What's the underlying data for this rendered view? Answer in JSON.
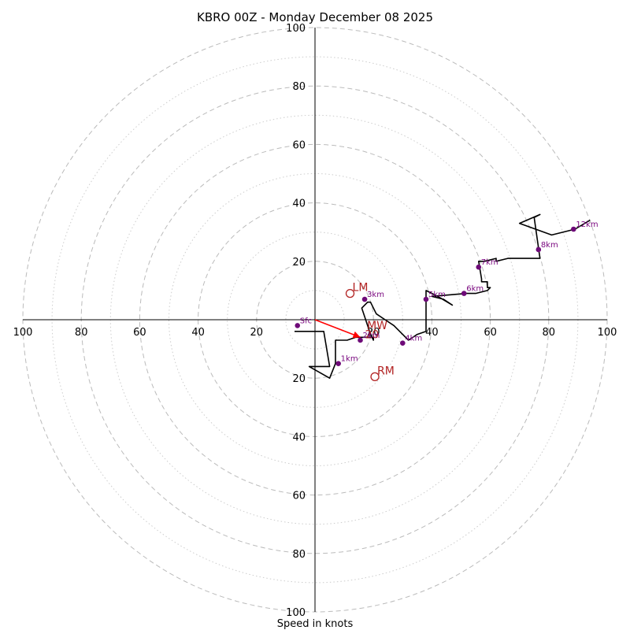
{
  "chart_data": {
    "type": "hodograph",
    "title": "KBRO 00Z - Monday December 08 2025",
    "xlabel": "Speed in knots",
    "range": [
      -100,
      100
    ],
    "ring_major_step": 20,
    "ring_minor_step": 10,
    "tick_labels": {
      "x_left": [
        "100",
        "80",
        "60",
        "40",
        "20"
      ],
      "x_right": [
        "20",
        "40",
        "60",
        "80",
        "100"
      ],
      "y_up": [
        "20",
        "40",
        "60",
        "80",
        "100"
      ],
      "y_down": [
        "20",
        "40",
        "60",
        "80",
        "100"
      ]
    },
    "hodograph_trace": [
      [
        -7,
        -4
      ],
      [
        3,
        -4
      ],
      [
        5,
        -16
      ],
      [
        -2,
        -16
      ],
      [
        5,
        -20
      ],
      [
        7,
        -15
      ],
      [
        7,
        -7
      ],
      [
        10,
        -7
      ],
      [
        11,
        -7
      ],
      [
        14,
        -6
      ],
      [
        20,
        -6
      ],
      [
        20,
        -7
      ],
      [
        19,
        -5
      ],
      [
        18,
        -2
      ],
      [
        17,
        1
      ],
      [
        16,
        4
      ],
      [
        17,
        5
      ],
      [
        18,
        6
      ],
      [
        19,
        6
      ],
      [
        20,
        4
      ],
      [
        21,
        2
      ],
      [
        24,
        0
      ],
      [
        27,
        -2
      ],
      [
        30,
        -5
      ],
      [
        32,
        -7
      ],
      [
        35,
        -5
      ],
      [
        38,
        -4
      ],
      [
        38,
        -1
      ],
      [
        38,
        3
      ],
      [
        38,
        7
      ],
      [
        38,
        10
      ],
      [
        42,
        8
      ],
      [
        47,
        5
      ],
      [
        44,
        7
      ],
      [
        40,
        8
      ],
      [
        52,
        9
      ],
      [
        55,
        9
      ],
      [
        59,
        10
      ],
      [
        60,
        11
      ],
      [
        59,
        11
      ],
      [
        59,
        13
      ],
      [
        57,
        13
      ],
      [
        57,
        14
      ],
      [
        56,
        20
      ],
      [
        57,
        20
      ],
      [
        58,
        20
      ],
      [
        62,
        21
      ],
      [
        62,
        20
      ],
      [
        66,
        21
      ],
      [
        77,
        21
      ],
      [
        75,
        35
      ],
      [
        77,
        36
      ],
      [
        70,
        33
      ],
      [
        81,
        29
      ],
      [
        89,
        31
      ],
      [
        94,
        34
      ],
      [
        89,
        31
      ]
    ],
    "height_markers": [
      {
        "label": "Sfc",
        "u": -6,
        "v": -2
      },
      {
        "label": "1km",
        "u": 8,
        "v": -15
      },
      {
        "label": "2km",
        "u": 15.5,
        "v": -7
      },
      {
        "label": "3km",
        "u": 17,
        "v": 7
      },
      {
        "label": "4km",
        "u": 30,
        "v": -8
      },
      {
        "label": "5km",
        "u": 38,
        "v": 7
      },
      {
        "label": "6km",
        "u": 51,
        "v": 9
      },
      {
        "label": "7km",
        "u": 56,
        "v": 18
      },
      {
        "label": "8km",
        "u": 76.5,
        "v": 24
      },
      {
        "label": "12km",
        "u": 88.5,
        "v": 31
      }
    ],
    "storm_motions": [
      {
        "label": "LM",
        "u": 12,
        "v": 9
      },
      {
        "label": "RM",
        "u": 20.5,
        "v": -19.5
      },
      {
        "label": "MW",
        "u": 17,
        "v": -4
      }
    ],
    "bulk_shear": {
      "label": "20",
      "u": 15.5,
      "v": -6
    },
    "colors": {
      "trace": "#000000",
      "marker": "#6e0a78",
      "marker_label": "#7b0a80",
      "storm_motion": "#b22222",
      "shear_vector": "#ff0000",
      "ring_major": "#bbbbbb",
      "ring_minor": "#cccccc"
    }
  }
}
